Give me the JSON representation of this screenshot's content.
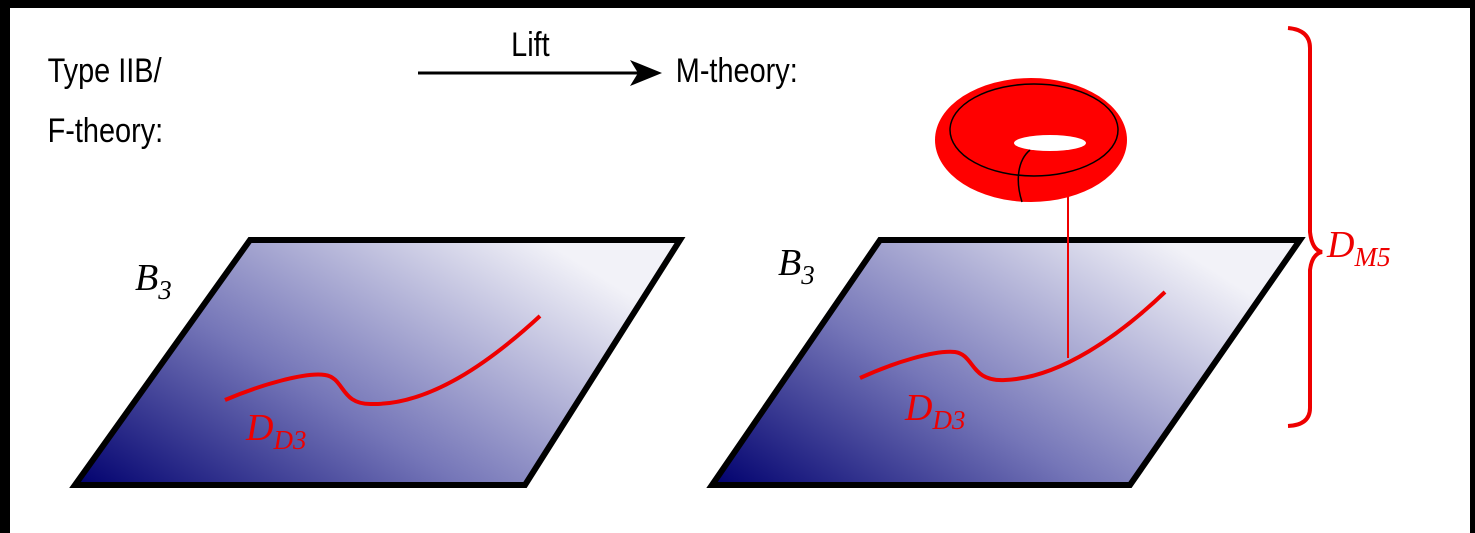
{
  "labels": {
    "left_title_line1": "Type IIB/",
    "left_title_line2": "F-theory:",
    "arrow": "Lift",
    "right_title": "M-theory:"
  },
  "left_panel": {
    "base": {
      "main": "B",
      "sub": "3"
    },
    "divisor": {
      "main": "D",
      "sub": "D3"
    }
  },
  "right_panel": {
    "base": {
      "main": "B",
      "sub": "3"
    },
    "divisor": {
      "main": "D",
      "sub": "D3"
    },
    "bracket": {
      "main": "D",
      "sub": "M5"
    }
  }
}
